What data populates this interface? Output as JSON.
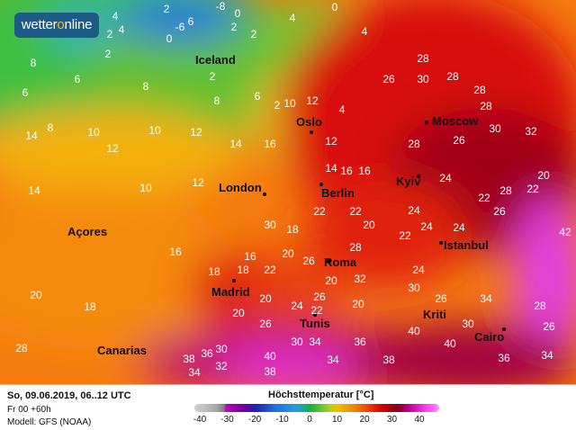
{
  "logo": "wetteronline",
  "cities": [
    "Iceland",
    "Oslo",
    "Moscow",
    "London",
    "Berlin",
    "Kyiv",
    "Açores",
    "Madrid",
    "Roma",
    "Istanbul",
    "Tunis",
    "Kriti",
    "Cairo",
    "Canarias"
  ],
  "temperatures": [
    4,
    2,
    -8,
    0,
    0,
    2,
    4,
    6,
    0,
    -6,
    2,
    2,
    4,
    4,
    2,
    8,
    6,
    8,
    6,
    2,
    6,
    8,
    2,
    4,
    10,
    12,
    14,
    8,
    10,
    10,
    12,
    14,
    12,
    10,
    12,
    16,
    14,
    12,
    16,
    16,
    14,
    16,
    18,
    18,
    18,
    20,
    20,
    22,
    20,
    24,
    22,
    24,
    24,
    28,
    26,
    30,
    28,
    28,
    26,
    28,
    30,
    32,
    28,
    26,
    28,
    22,
    22,
    20,
    18,
    20,
    28,
    30,
    32,
    34,
    36,
    38,
    38,
    40,
    34,
    34,
    36,
    38,
    40,
    42,
    30,
    26,
    22,
    24,
    26,
    28,
    20,
    30,
    16,
    22,
    20,
    26,
    24,
    28,
    34,
    32,
    26,
    36,
    34,
    40,
    26,
    30,
    20,
    24,
    30,
    22
  ],
  "footer": {
    "date": "So, 09.06.2019, 06..12 UTC",
    "run": "Fr 00 +60h",
    "model": "Modell: GFS (NOAA)"
  },
  "legend": {
    "title": "Höchsttemperatur [°C]",
    "ticks": [
      "-40",
      "-30",
      "-20",
      "-10",
      "0",
      "10",
      "20",
      "30",
      "40"
    ]
  },
  "colors": {
    "cold": "#2070e0",
    "cool": "#20b040",
    "mild": "#f0a000",
    "warm": "#f03000",
    "hot": "#b00010",
    "extreme": "#e020e0"
  }
}
